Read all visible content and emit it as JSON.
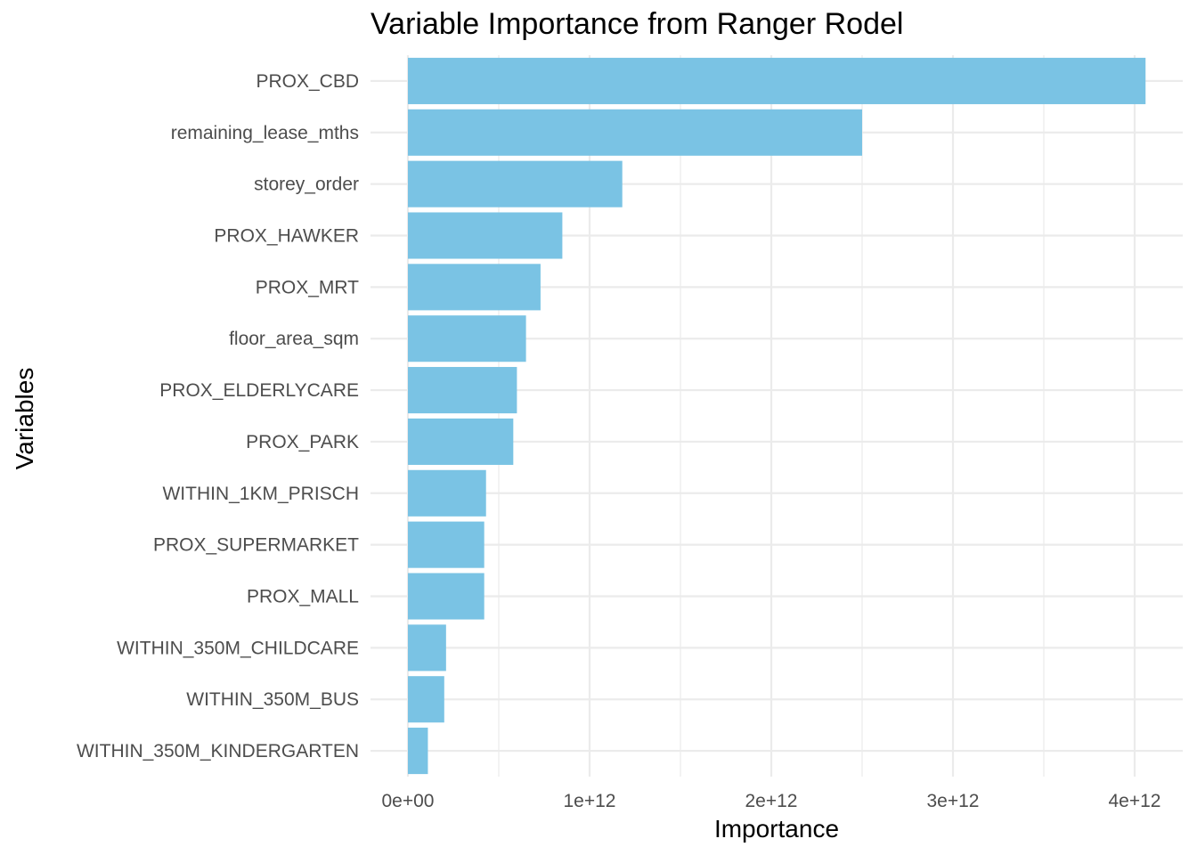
{
  "chart_data": {
    "type": "bar",
    "orientation": "horizontal",
    "title": "Variable Importance from Ranger Rodel",
    "xlabel": "Importance",
    "ylabel": "Variables",
    "bar_color": "#7AC3E4",
    "grid_color": "#EBEBEB",
    "grid": true,
    "xlim": [
      0,
      4280000000000.0
    ],
    "xticks": [
      0,
      1000000000000.0,
      2000000000000.0,
      3000000000000.0,
      4000000000000.0
    ],
    "xtick_labels": [
      "0e+00",
      "1e+12",
      "2e+12",
      "3e+12",
      "4e+12"
    ],
    "categories": [
      "PROX_CBD",
      "remaining_lease_mths",
      "storey_order",
      "PROX_HAWKER",
      "PROX_MRT",
      "floor_area_sqm",
      "PROX_ELDERLYCARE",
      "PROX_PARK",
      "WITHIN_1KM_PRISCH",
      "PROX_SUPERMARKET",
      "PROX_MALL",
      "WITHIN_350M_CHILDCARE",
      "WITHIN_350M_BUS",
      "WITHIN_350M_KINDERGARTEN"
    ],
    "values": [
      4060000000000.0,
      2500000000000.0,
      1180000000000.0,
      850000000000.0,
      730000000000.0,
      650000000000.0,
      600000000000.0,
      580000000000.0,
      430000000000.0,
      420000000000.0,
      420000000000.0,
      210000000000.0,
      200000000000.0,
      110000000000.0
    ]
  }
}
